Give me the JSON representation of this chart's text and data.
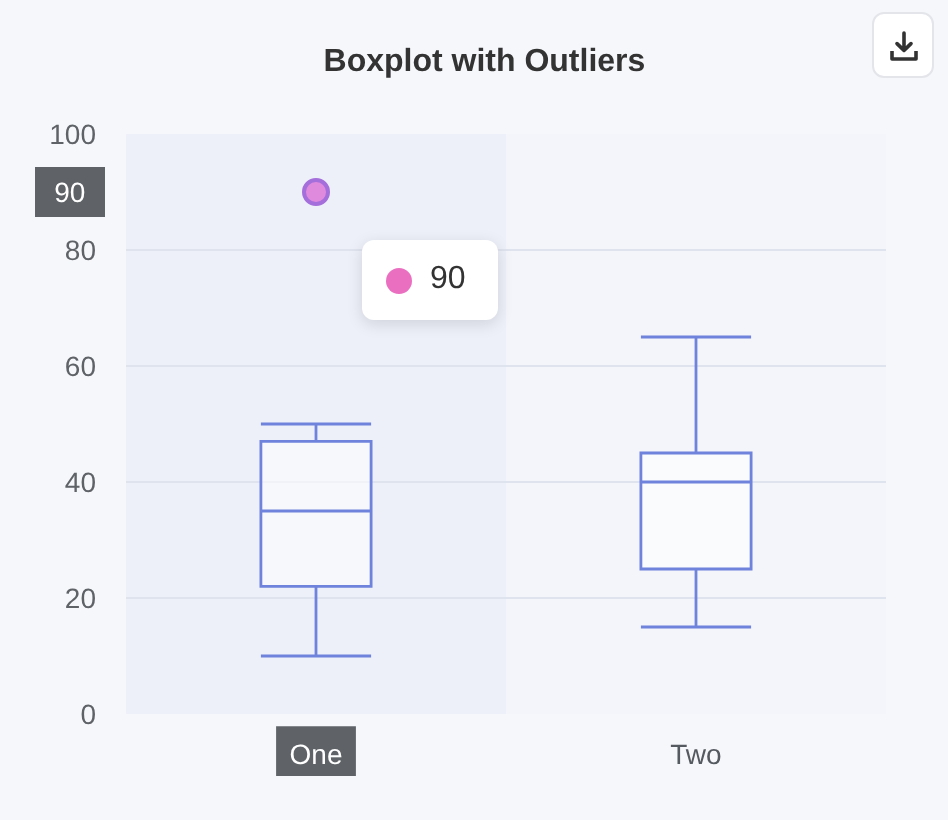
{
  "chart_data": {
    "type": "box",
    "title": "Boxplot with Outliers",
    "categories": [
      "One",
      "Two"
    ],
    "series": [
      {
        "color": "#6f82dc",
        "boxes": [
          {
            "low": 10,
            "q1": 22,
            "median": 35,
            "q3": 47,
            "high": 50
          },
          {
            "low": 15,
            "q1": 25,
            "median": 40,
            "q3": 45,
            "high": 65
          }
        ]
      },
      {
        "type": "scatter",
        "x": [
          "One"
        ],
        "values": [
          90
        ],
        "color": "#e08ade"
      }
    ],
    "ylim": [
      0,
      100
    ],
    "yticks": [
      0,
      20,
      40,
      60,
      80,
      100
    ],
    "grid": "y",
    "marker": "circle",
    "bands": [
      {
        "axis": "x",
        "from": "One",
        "to": "One",
        "color": "#edf0f9"
      }
    ],
    "annotations": [
      "90",
      "90"
    ]
  }
}
